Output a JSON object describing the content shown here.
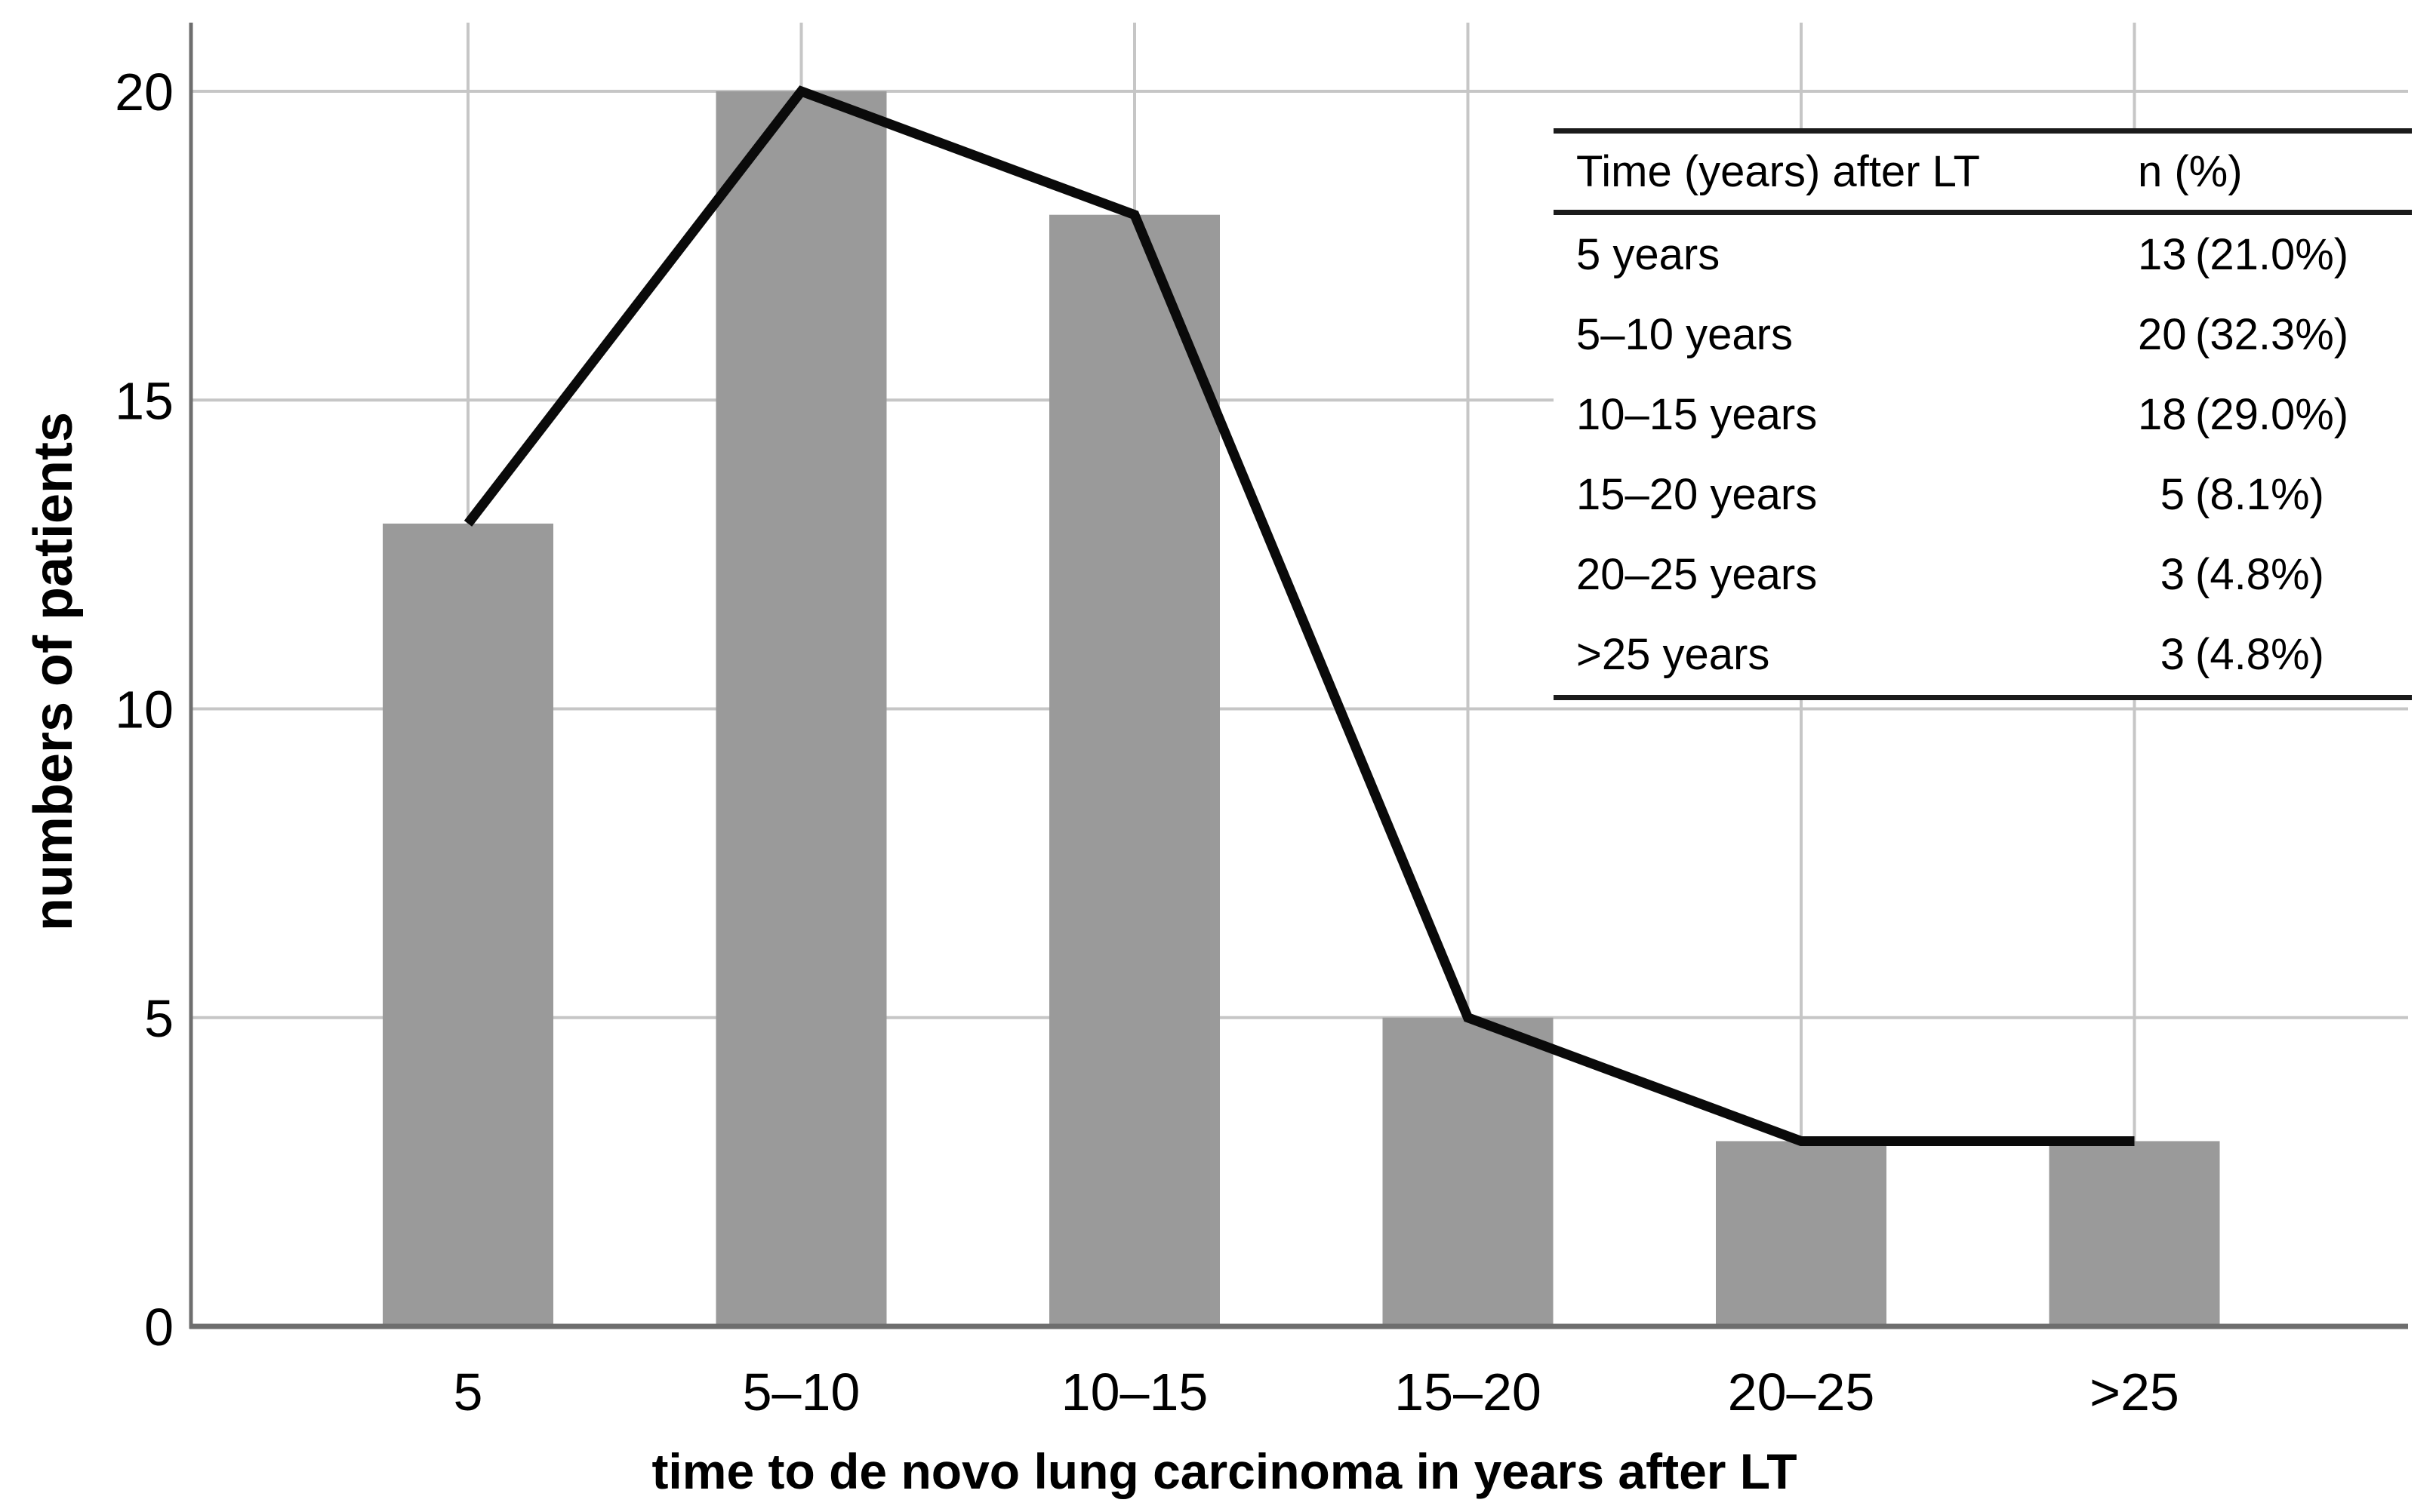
{
  "colors": {
    "bar": "#9a9a9a",
    "gridline": "#c6c6c6",
    "axis": "#6e6e6e",
    "line": "#0a0a0a",
    "table_rule": "#1b1b1b",
    "text": "#000000",
    "background": "#ffffff"
  },
  "chart_data": {
    "type": "bar",
    "subtype": "bar-with-line-overlay",
    "categories": [
      "5",
      "5–10",
      "10–15",
      "15–20",
      "20–25",
      ">25"
    ],
    "series": [
      {
        "name": "patients per interval (bars)",
        "type": "bar",
        "values": [
          13,
          20,
          18,
          5,
          3,
          3
        ]
      },
      {
        "name": "patients per interval (trend line)",
        "type": "line",
        "values": [
          13,
          20,
          18,
          5,
          3,
          3
        ]
      }
    ],
    "title": "",
    "xlabel": "time to de novo lung carcinoma in years after LT",
    "ylabel": "numbers of patients",
    "ylim": [
      0,
      20
    ],
    "yticks": [
      0,
      5,
      10,
      15,
      20
    ],
    "grid": true,
    "legend": false
  },
  "inset_table": {
    "headers": [
      "Time (years) after LT",
      "n (%)"
    ],
    "rows": [
      {
        "time": "5 years",
        "n": "13",
        "pct": "(21.0%)"
      },
      {
        "time": "5–10 years",
        "n": "20",
        "pct": "(32.3%)"
      },
      {
        "time": "10–15 years",
        "n": "18",
        "pct": "(29.0%)"
      },
      {
        "time": "15–20 years",
        "n": "5",
        "pct": "(8.1%)"
      },
      {
        "time": "20–25 years",
        "n": "3",
        "pct": "(4.8%)"
      },
      {
        "time": ">25 years",
        "n": "3",
        "pct": "(4.8%)"
      }
    ]
  }
}
